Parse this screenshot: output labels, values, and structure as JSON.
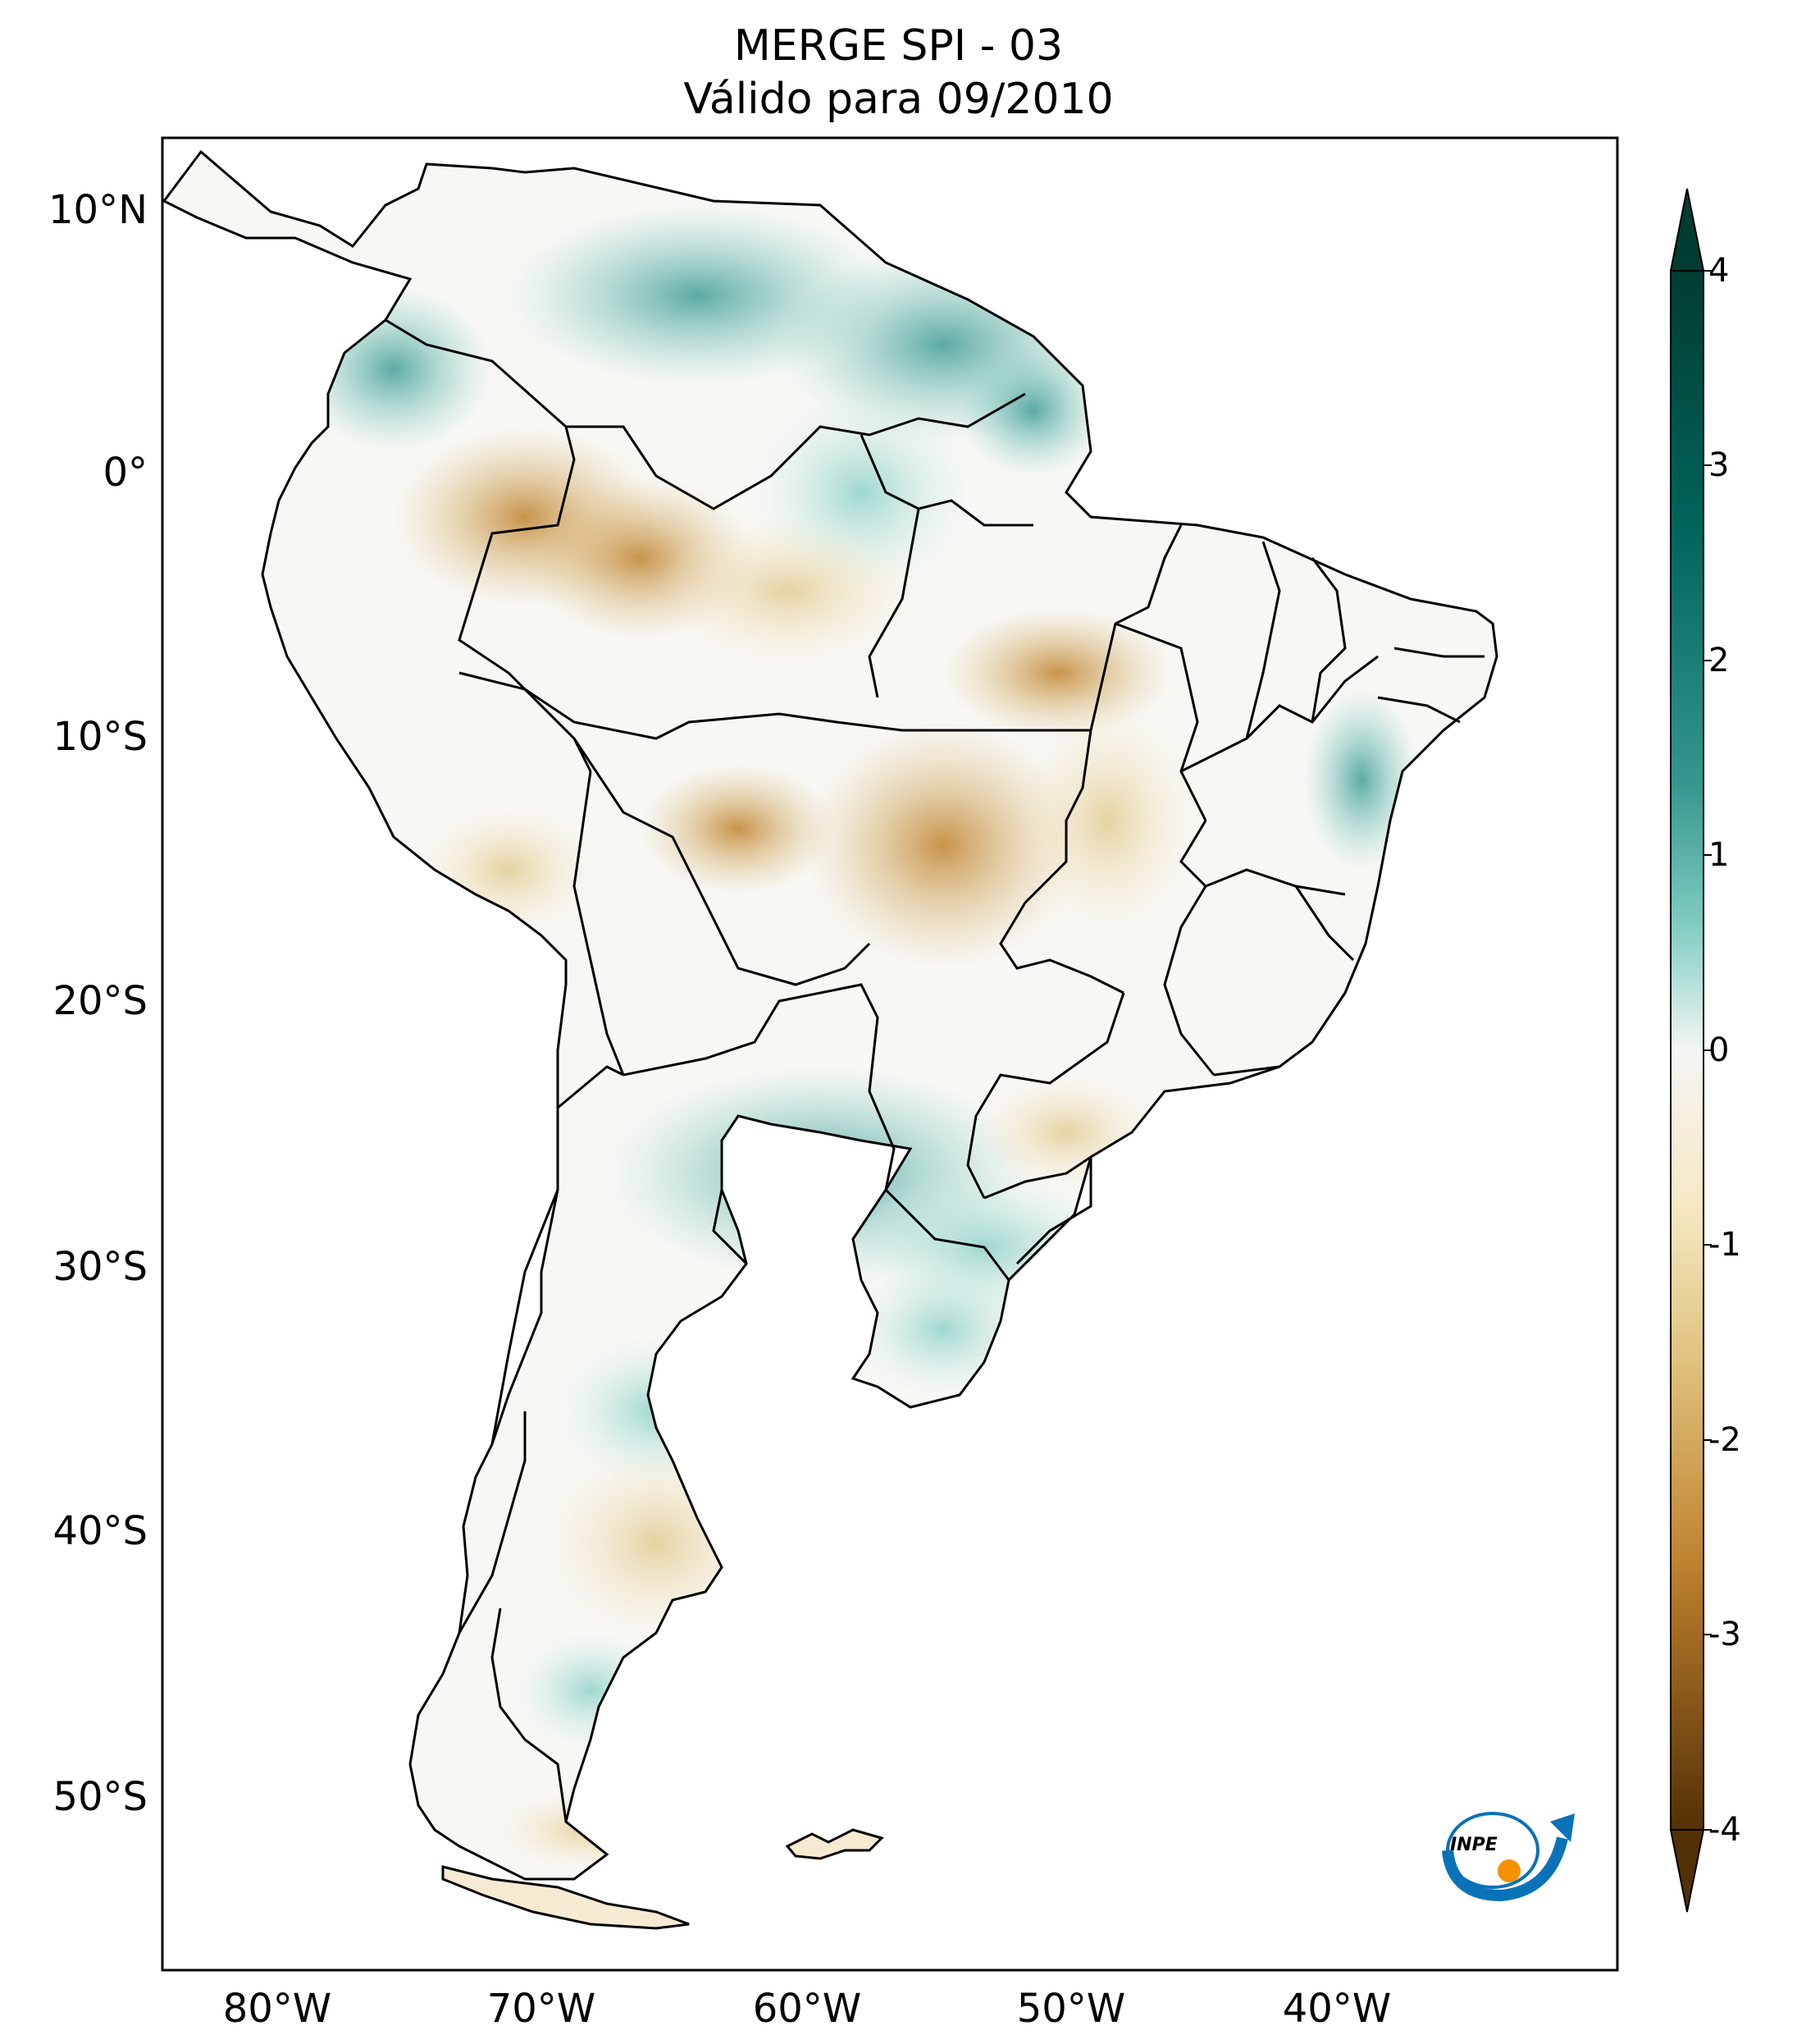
{
  "title": {
    "line1": "MERGE   SPI - 03",
    "line2": "Válido para 09/2010"
  },
  "axes": {
    "lat_ticks": [
      "10°N",
      "0°",
      "10°S",
      "20°S",
      "30°S",
      "40°S",
      "50°S"
    ],
    "lon_ticks": [
      "80°W",
      "70°W",
      "60°W",
      "50°W",
      "40°W"
    ]
  },
  "colorbar": {
    "ticks": [
      "4",
      "3",
      "2",
      "1",
      "0",
      "-1",
      "-2",
      "-3",
      "-4"
    ],
    "colors": {
      "dark_wet": "#013c30",
      "wet": "#35978f",
      "light_wet": "#c7eae5",
      "neutral": "#f5f5f5",
      "light_dry": "#f6e8c3",
      "dry": "#bf812d",
      "dark_dry": "#543005"
    }
  },
  "logo": {
    "text": "INPE",
    "colors": {
      "blue": "#0a72b8",
      "orange": "#f39200"
    }
  }
}
